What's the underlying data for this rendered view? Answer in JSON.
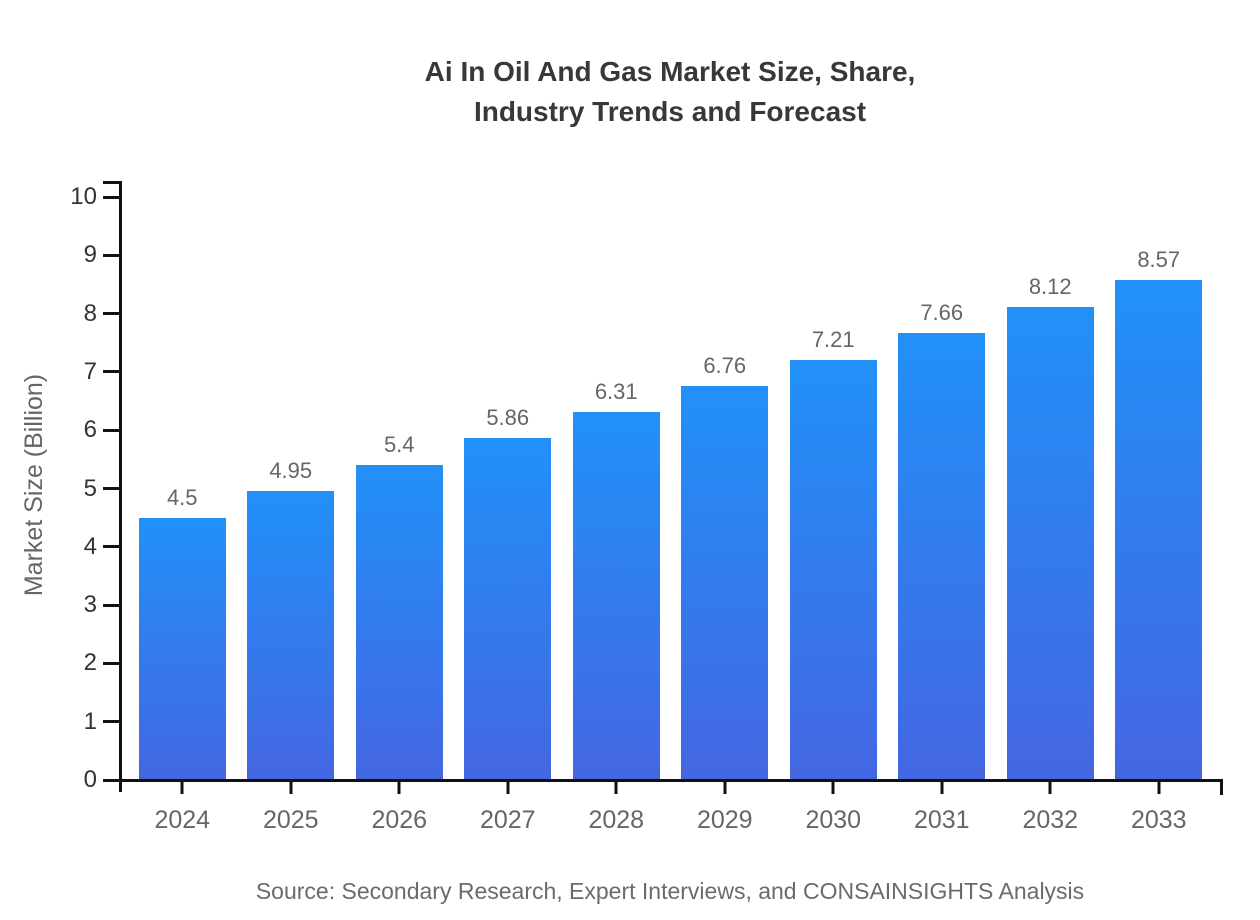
{
  "title": {
    "line1": "Ai In Oil And Gas Market Size, Share,",
    "line2": "Industry Trends and Forecast"
  },
  "chart_data": {
    "type": "bar",
    "title": "Ai In Oil And Gas Market Size, Share, Industry Trends and Forecast",
    "categories": [
      "2024",
      "2025",
      "2026",
      "2027",
      "2028",
      "2029",
      "2030",
      "2031",
      "2032",
      "2033"
    ],
    "values": [
      4.5,
      4.95,
      5.4,
      5.86,
      6.31,
      6.76,
      7.21,
      7.66,
      8.12,
      8.57
    ],
    "bar_labels": [
      "4.5",
      "4.95",
      "5.4",
      "5.86",
      "6.31",
      "6.76",
      "7.21",
      "7.66",
      "8.12",
      "8.57"
    ],
    "xlabel": "",
    "ylabel": "Market Size (Billion)",
    "ylim": [
      0,
      10
    ],
    "ytick_step": 1,
    "grid": false,
    "legend": false
  },
  "source": {
    "text": "Source: Secondary Research, Expert Interviews, and CONSAINSIGHTS Analysis"
  },
  "colors": {
    "background": "#FFFFFF",
    "bar_gradient_top": "#2191F8",
    "bar_gradient_bottom": "#4466E1",
    "axis": "#111111",
    "title_text": "#383838",
    "y_tick_label": "#333333",
    "x_tick_label": "#666666",
    "data_label": "#666666",
    "y_axis_title": "#666666",
    "source_text": "#6B6B6B"
  }
}
